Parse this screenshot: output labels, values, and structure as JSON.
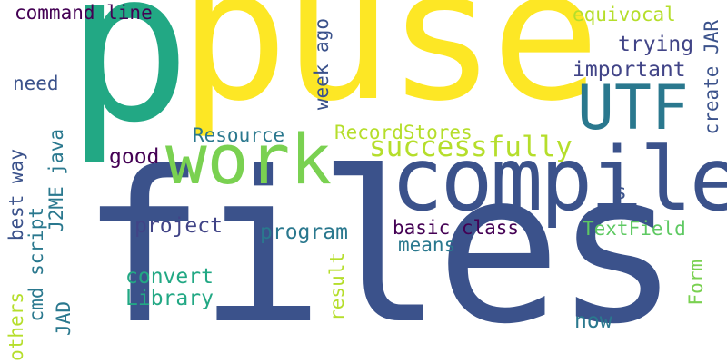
{
  "wordcloud": {
    "words": [
      {
        "text": "puse",
        "color": "#fde725"
      },
      {
        "text": "files",
        "color": "#3b528b"
      },
      {
        "text": "p",
        "color": "#22a884"
      },
      {
        "text": "compile",
        "color": "#3b528b"
      },
      {
        "text": "work",
        "color": "#7ad151"
      },
      {
        "text": "UTF",
        "color": "#2a788e"
      },
      {
        "text": "successfully",
        "color": "#b5de2b"
      },
      {
        "text": "command line",
        "color": "#440154"
      },
      {
        "text": "equivocal",
        "color": "#b5de2b"
      },
      {
        "text": "trying",
        "color": "#414487"
      },
      {
        "text": "important",
        "color": "#414487"
      },
      {
        "text": "need",
        "color": "#3b528b"
      },
      {
        "text": "week ago",
        "color": "#3b528b"
      },
      {
        "text": "create JAR",
        "color": "#3b528b"
      },
      {
        "text": "Resource",
        "color": "#2a788e"
      },
      {
        "text": "RecordStores",
        "color": "#b5de2b"
      },
      {
        "text": "good",
        "color": "#440154"
      },
      {
        "text": "best way",
        "color": "#3b528b"
      },
      {
        "text": "J2ME java",
        "color": "#2a788e"
      },
      {
        "text": "s",
        "color": "#3b528b"
      },
      {
        "text": "project",
        "color": "#414487"
      },
      {
        "text": "program",
        "color": "#2a788e"
      },
      {
        "text": "basic class",
        "color": "#440154"
      },
      {
        "text": "TextField",
        "color": "#5ec962"
      },
      {
        "text": "means",
        "color": "#2a788e"
      },
      {
        "text": "cmd script",
        "color": "#2a788e"
      },
      {
        "text": "convert",
        "color": "#22a884"
      },
      {
        "text": "Library",
        "color": "#22a884"
      },
      {
        "text": "result",
        "color": "#b5de2b"
      },
      {
        "text": "Form",
        "color": "#7ad151"
      },
      {
        "text": "others",
        "color": "#b5de2b"
      },
      {
        "text": "JAD",
        "color": "#2a788e"
      },
      {
        "text": "now",
        "color": "#2a788e"
      }
    ]
  }
}
